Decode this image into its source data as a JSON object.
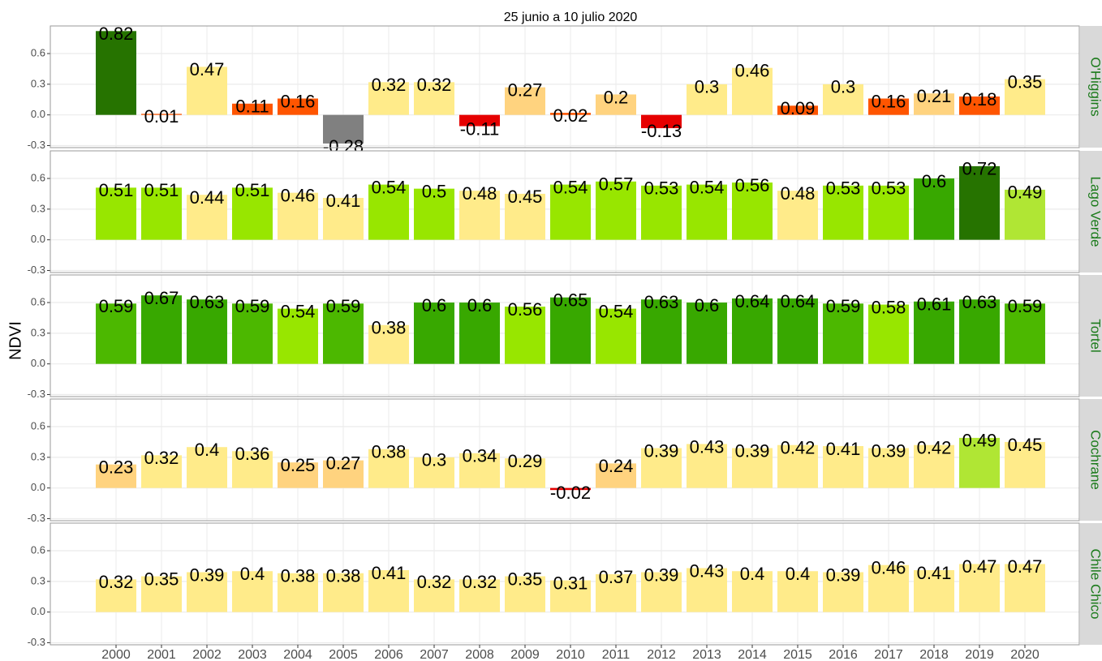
{
  "chart_data": {
    "type": "bar",
    "title": "25 junio a 10 julio 2020",
    "y_label": "NDVI",
    "categories": [
      "2000",
      "2001",
      "2002",
      "2003",
      "2004",
      "2005",
      "2006",
      "2007",
      "2008",
      "2009",
      "2010",
      "2011",
      "2012",
      "2013",
      "2014",
      "2015",
      "2016",
      "2017",
      "2018",
      "2019",
      "2020"
    ],
    "ylim": [
      -0.32,
      0.87
    ],
    "yticks": [
      -0.3,
      {
        "value": 0,
        "label": "0.0"
      },
      0.3,
      0.6
    ],
    "grid": true,
    "panels": [
      {
        "name": "O'Higgins",
        "values": [
          0.82,
          0.01,
          0.47,
          0.11,
          0.16,
          -0.28,
          0.32,
          0.32,
          -0.11,
          0.27,
          0.02,
          0.2,
          -0.13,
          0.3,
          0.46,
          0.09,
          0.3,
          0.16,
          0.21,
          0.18,
          0.35
        ],
        "colors": [
          "#267300",
          "#ff5500",
          "#ffeb8a",
          "#ff5500",
          "#ff5500",
          "#808080",
          "#ffeb8a",
          "#ffeb8a",
          "#e60000",
          "#ffd37f",
          "#ff5500",
          "#ffd37f",
          "#e60000",
          "#ffeb8a",
          "#ffeb8a",
          "#ff5500",
          "#ffeb8a",
          "#ff5500",
          "#ffd37f",
          "#ff5500",
          "#ffeb8a"
        ]
      },
      {
        "name": "Lago Verde",
        "values": [
          0.51,
          0.51,
          0.44,
          0.51,
          0.46,
          0.41,
          0.54,
          0.5,
          0.48,
          0.45,
          0.54,
          0.57,
          0.53,
          0.54,
          0.56,
          0.48,
          0.53,
          0.53,
          0.6,
          0.72,
          0.49
        ],
        "colors": [
          "#98e600",
          "#98e600",
          "#ffeb8a",
          "#98e600",
          "#ffeb8a",
          "#ffeb8a",
          "#98e600",
          "#98e600",
          "#ffeb8a",
          "#ffeb8a",
          "#98e600",
          "#98e600",
          "#98e600",
          "#98e600",
          "#98e600",
          "#ffeb8a",
          "#98e600",
          "#98e600",
          "#38a800",
          "#267300",
          "#b0e634"
        ]
      },
      {
        "name": "Tortel",
        "values": [
          0.59,
          0.67,
          0.63,
          0.59,
          0.54,
          0.59,
          0.38,
          0.6,
          0.6,
          0.56,
          0.65,
          0.54,
          0.63,
          0.6,
          0.64,
          0.64,
          0.59,
          0.58,
          0.61,
          0.63,
          0.59
        ],
        "colors": [
          "#4cb800",
          "#38a800",
          "#38a800",
          "#4cb800",
          "#98e600",
          "#4cb800",
          "#ffeb8a",
          "#38a800",
          "#38a800",
          "#98e600",
          "#38a800",
          "#98e600",
          "#38a800",
          "#38a800",
          "#38a800",
          "#38a800",
          "#4cb800",
          "#98e600",
          "#38a800",
          "#38a800",
          "#4cb800"
        ]
      },
      {
        "name": "Cochrane",
        "values": [
          0.23,
          0.32,
          0.4,
          0.36,
          0.25,
          0.27,
          0.38,
          0.3,
          0.34,
          0.29,
          -0.02,
          0.24,
          0.39,
          0.43,
          0.39,
          0.42,
          0.41,
          0.39,
          0.42,
          0.49,
          0.45
        ],
        "colors": [
          "#ffd37f",
          "#ffeb8a",
          "#ffeb8a",
          "#ffeb8a",
          "#ffd37f",
          "#ffd37f",
          "#ffeb8a",
          "#ffeb8a",
          "#ffeb8a",
          "#ffeb8a",
          "#e60000",
          "#ffd37f",
          "#ffeb8a",
          "#ffeb8a",
          "#ffeb8a",
          "#ffeb8a",
          "#ffeb8a",
          "#ffeb8a",
          "#ffeb8a",
          "#b0e634",
          "#ffeb8a"
        ]
      },
      {
        "name": "Chile Chico",
        "values": [
          0.32,
          0.35,
          0.39,
          0.4,
          0.38,
          0.38,
          0.41,
          0.32,
          0.32,
          0.35,
          0.31,
          0.37,
          0.39,
          0.43,
          0.4,
          0.4,
          0.39,
          0.46,
          0.41,
          0.47,
          0.47
        ],
        "colors": [
          "#ffeb8a",
          "#ffeb8a",
          "#ffeb8a",
          "#ffeb8a",
          "#ffeb8a",
          "#ffeb8a",
          "#ffeb8a",
          "#ffeb8a",
          "#ffeb8a",
          "#ffeb8a",
          "#ffeb8a",
          "#ffeb8a",
          "#ffeb8a",
          "#ffeb8a",
          "#ffeb8a",
          "#ffeb8a",
          "#ffeb8a",
          "#ffeb8a",
          "#ffeb8a",
          "#ffeb8a",
          "#ffeb8a"
        ]
      }
    ]
  }
}
